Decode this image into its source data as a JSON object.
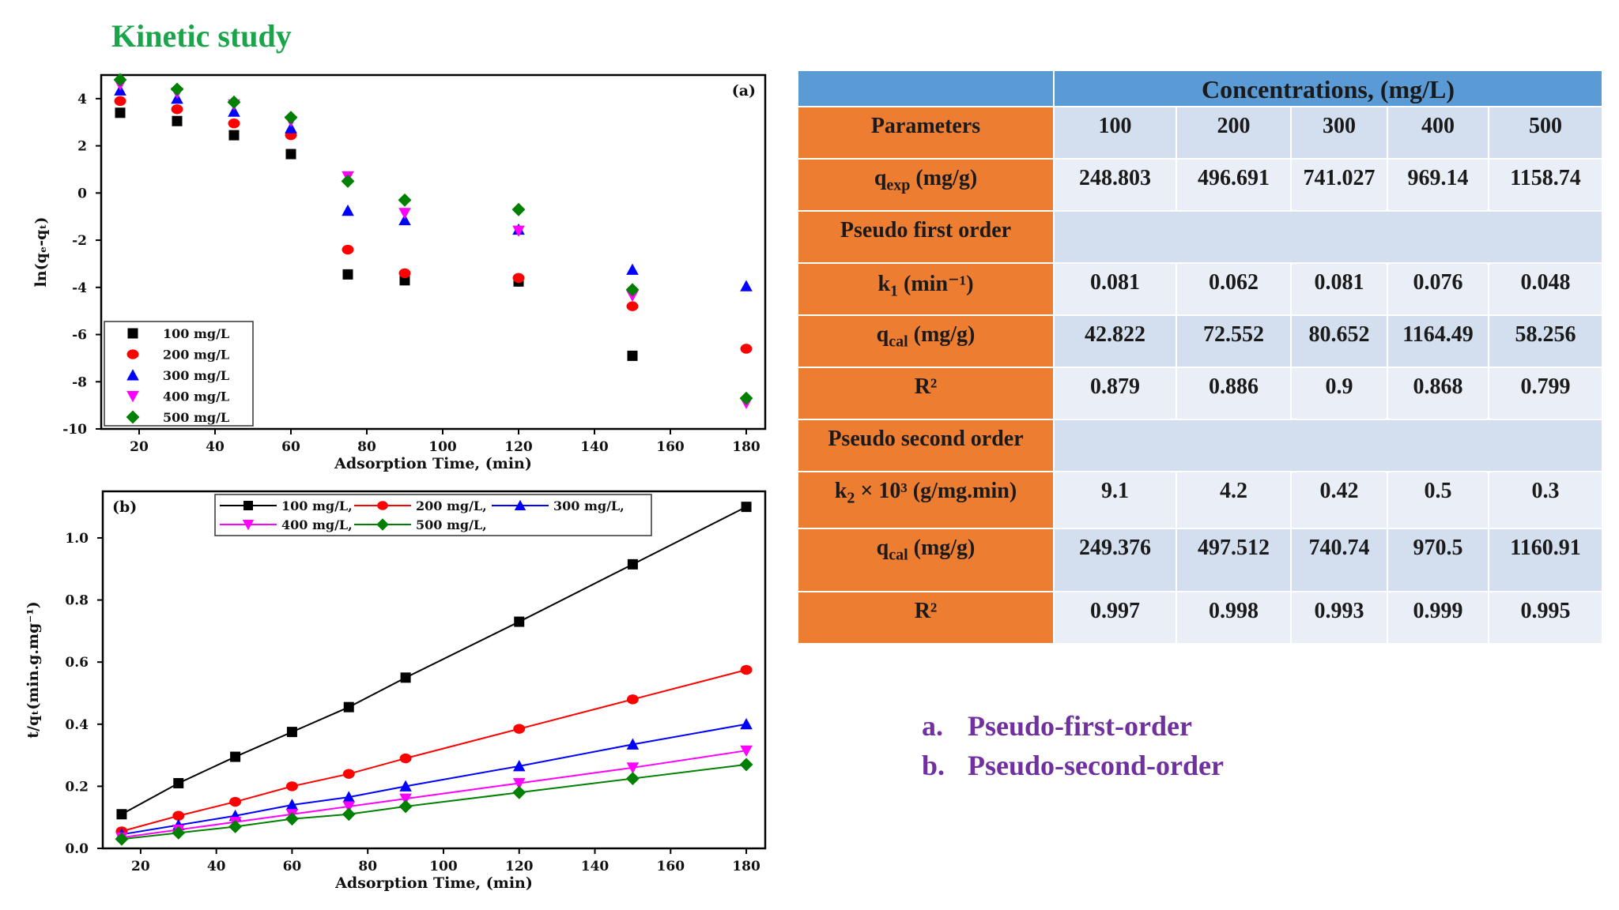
{
  "title": "Kinetic study",
  "chart_data": [
    {
      "type": "scatter",
      "panel_label": "(a)",
      "xlabel": "Adsorption Time, (min)",
      "ylabel": "ln(qₑ-qₜ)",
      "xlim": [
        10,
        185
      ],
      "ylim": [
        -10,
        5
      ],
      "xticks": [
        20,
        40,
        60,
        80,
        100,
        120,
        140,
        160,
        180
      ],
      "yticks": [
        4,
        2,
        0,
        -2,
        -4,
        -6,
        -8,
        -10
      ],
      "x": [
        15,
        30,
        45,
        60,
        75,
        90,
        120,
        150,
        180
      ],
      "series": [
        {
          "name": "100 mg/L",
          "color": "#000000",
          "marker": "square",
          "values": [
            3.4,
            3.05,
            2.45,
            1.65,
            -3.45,
            -3.7,
            -3.75,
            -6.9,
            null
          ]
        },
        {
          "name": "200 mg/L",
          "color": "#ff0000",
          "marker": "circle",
          "values": [
            3.9,
            3.55,
            2.95,
            2.45,
            -2.4,
            -3.4,
            -3.6,
            -4.8,
            -6.6
          ]
        },
        {
          "name": "300 mg/L",
          "color": "#0000ff",
          "marker": "triangle",
          "values": [
            4.35,
            4.0,
            3.45,
            2.75,
            -0.75,
            -1.15,
            -1.55,
            -3.25,
            -3.95
          ]
        },
        {
          "name": "400 mg/L",
          "color": "#ff00ff",
          "marker": "triangle-down",
          "values": [
            4.6,
            4.25,
            3.75,
            3.05,
            0.7,
            -0.85,
            -1.6,
            -4.35,
            -8.9
          ]
        },
        {
          "name": "500 mg/L",
          "color": "#008000",
          "marker": "diamond",
          "values": [
            4.8,
            4.4,
            3.85,
            3.2,
            0.5,
            -0.3,
            -0.7,
            -4.1,
            -8.7
          ]
        }
      ]
    },
    {
      "type": "line",
      "panel_label": "(b)",
      "xlabel": "Adsorption Time, (min)",
      "ylabel": "t/qₜ(min.g.mg⁻¹)",
      "xlim": [
        10,
        185
      ],
      "ylim": [
        0,
        1.15
      ],
      "xticks": [
        20,
        40,
        60,
        80,
        100,
        120,
        140,
        160,
        180
      ],
      "yticks": [
        0.0,
        0.2,
        0.4,
        0.6,
        0.8,
        1.0
      ],
      "x": [
        15,
        30,
        45,
        60,
        75,
        90,
        120,
        150,
        180
      ],
      "series": [
        {
          "name": "100 mg/L",
          "color": "#000000",
          "marker": "square",
          "values": [
            0.11,
            0.21,
            0.295,
            0.375,
            0.455,
            0.55,
            0.73,
            0.915,
            1.1
          ]
        },
        {
          "name": "200 mg/L",
          "color": "#ff0000",
          "marker": "circle",
          "values": [
            0.055,
            0.105,
            0.15,
            0.2,
            0.24,
            0.29,
            0.385,
            0.48,
            0.575
          ]
        },
        {
          "name": "300 mg/L",
          "color": "#0000ff",
          "marker": "triangle",
          "values": [
            0.045,
            0.075,
            0.105,
            0.14,
            0.165,
            0.2,
            0.265,
            0.335,
            0.4
          ]
        },
        {
          "name": "400 mg/L",
          "color": "#ff00ff",
          "marker": "triangle-down",
          "values": [
            0.035,
            0.06,
            0.085,
            0.11,
            0.135,
            0.16,
            0.21,
            0.26,
            0.315
          ]
        },
        {
          "name": "500 mg/L",
          "color": "#008000",
          "marker": "diamond",
          "values": [
            0.03,
            0.05,
            0.07,
            0.095,
            0.11,
            0.135,
            0.18,
            0.225,
            0.27
          ]
        }
      ]
    }
  ],
  "table": {
    "header": "Concentrations, (mg/L)",
    "columns": [
      "Parameters",
      "100",
      "200",
      "300",
      "400",
      "500"
    ],
    "rows": [
      {
        "label": "q",
        "sub": "exp",
        "label_rest": " (mg/g)",
        "values": [
          "248.803",
          "496.691",
          "741.027",
          "969.14",
          "1158.74"
        ]
      },
      {
        "label": "Pseudo first order",
        "section": true
      },
      {
        "label": "k",
        "sub": "1",
        "label_rest": " (min⁻¹)",
        "values": [
          "0.081",
          "0.062",
          "0.081",
          "0.076",
          "0.048"
        ]
      },
      {
        "label": "q",
        "sub": "cal",
        "label_rest": " (mg/g)",
        "values": [
          "42.822",
          "72.552",
          "80.652",
          "1164.49",
          "58.256"
        ]
      },
      {
        "label": "R²",
        "values": [
          "0.879",
          "0.886",
          "0.9",
          "0.868",
          "0.799"
        ]
      },
      {
        "label": "Pseudo second order",
        "section": true
      },
      {
        "label": "k",
        "sub": "2",
        "label_rest": " × 10³ (g/mg.min)",
        "values": [
          "9.1",
          "4.2",
          "0.42",
          "0.5",
          "0.3"
        ]
      },
      {
        "label": "q",
        "sub": "cal",
        "label_rest": " (mg/g)",
        "values": [
          "249.376",
          "497.512",
          "740.74",
          "970.5",
          "1160.91"
        ]
      },
      {
        "label": "R²",
        "values": [
          "0.997",
          "0.998",
          "0.993",
          "0.999",
          "0.995"
        ]
      }
    ]
  },
  "notes": [
    {
      "letter": "a.",
      "text": "Pseudo-first-order"
    },
    {
      "letter": "b.",
      "text": "Pseudo-second-order"
    }
  ]
}
